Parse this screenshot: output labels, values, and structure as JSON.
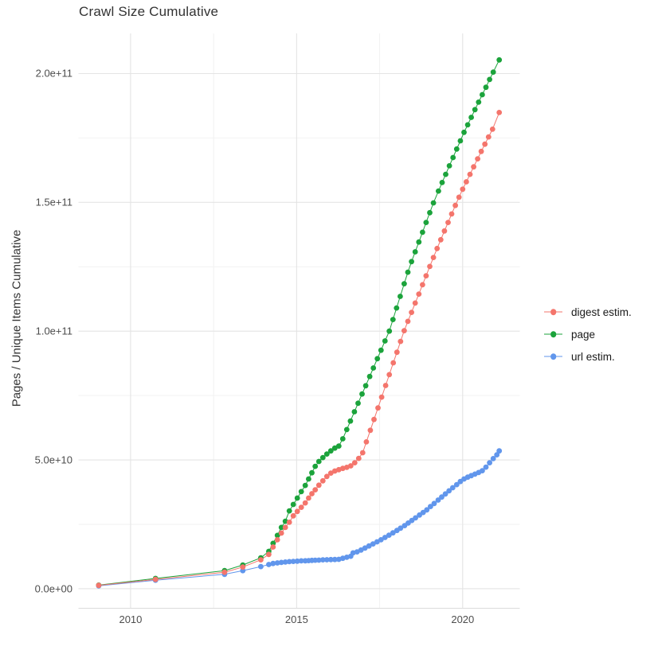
{
  "title": "Crawl Size Cumulative",
  "y_axis": {
    "label": "Pages / Unique Items Cumulative",
    "ticks": [
      {
        "v": 0,
        "label": "0.0e+00"
      },
      {
        "v": 50000000000.0,
        "label": "5.0e+10"
      },
      {
        "v": 100000000000.0,
        "label": "1.0e+11"
      },
      {
        "v": 150000000000.0,
        "label": "1.5e+11"
      },
      {
        "v": 200000000000.0,
        "label": "2.0e+11"
      }
    ]
  },
  "x_axis": {
    "ticks": [
      {
        "v": 2010,
        "label": "2010"
      },
      {
        "v": 2015,
        "label": "2015"
      },
      {
        "v": 2020,
        "label": "2020"
      }
    ]
  },
  "legend": {
    "position": "right",
    "items": [
      {
        "label": "digest estim.",
        "color": "#f4756c"
      },
      {
        "label": "page",
        "color": "#1ba33b"
      },
      {
        "label": "url estim.",
        "color": "#6196ec"
      }
    ]
  },
  "colors": {
    "background": "#ffffff",
    "grid_major": "#e4e4e4",
    "grid_minor": "#f2f2f2",
    "axis_line": "#dcdcdc",
    "title_text": "#333333",
    "tick_text": "#4d4d4d",
    "legend_text": "#1a1a1a"
  },
  "chart_data": {
    "type": "line",
    "title": "Crawl Size Cumulative",
    "xlabel": "",
    "ylabel": "Pages / Unique Items Cumulative",
    "xlim": [
      2008.43,
      2021.72
    ],
    "ylim": [
      -7600000000.0,
      215600000000.0
    ],
    "x_major_breaks": [
      2010,
      2015,
      2020
    ],
    "x_minor_breaks": [
      2012.5,
      2017.5
    ],
    "y_major_breaks": [
      0,
      50000000000.0,
      100000000000.0,
      150000000000.0,
      200000000000.0
    ],
    "y_minor_breaks": [
      25000000000.0,
      75000000000.0,
      125000000000.0,
      175000000000.0
    ],
    "grid": true,
    "legend_position": "right",
    "marker_radius_px": 3.4,
    "series": [
      {
        "name": "url estim.",
        "color": "#6196ec",
        "points": [
          [
            2009.04,
            1100000000.0
          ],
          [
            2010.75,
            3300000000.0
          ],
          [
            2012.83,
            5600000000.0
          ],
          [
            2013.38,
            7000000000.0
          ],
          [
            2013.92,
            8600000000.0
          ],
          [
            2014.16,
            9400000000.0
          ],
          [
            2014.29,
            9800000000.0
          ],
          [
            2014.42,
            10000000000.0
          ],
          [
            2014.54,
            10200000000.0
          ],
          [
            2014.66,
            10350000000.0
          ],
          [
            2014.78,
            10500000000.0
          ],
          [
            2014.9,
            10600000000.0
          ],
          [
            2015.02,
            10700000000.0
          ],
          [
            2015.14,
            10800000000.0
          ],
          [
            2015.26,
            10850000000.0
          ],
          [
            2015.36,
            10900000000.0
          ],
          [
            2015.46,
            11000000000.0
          ],
          [
            2015.56,
            11050000000.0
          ],
          [
            2015.67,
            11100000000.0
          ],
          [
            2015.79,
            11200000000.0
          ],
          [
            2015.91,
            11250000000.0
          ],
          [
            2016.03,
            11300000000.0
          ],
          [
            2016.15,
            11350000000.0
          ],
          [
            2016.27,
            11400000000.0
          ],
          [
            2016.39,
            11800000000.0
          ],
          [
            2016.51,
            12200000000.0
          ],
          [
            2016.63,
            12600000000.0
          ],
          [
            2016.7,
            13900000000.0
          ],
          [
            2016.82,
            14300000000.0
          ],
          [
            2016.94,
            15000000000.0
          ],
          [
            2017.06,
            15800000000.0
          ],
          [
            2017.18,
            16600000000.0
          ],
          [
            2017.3,
            17400000000.0
          ],
          [
            2017.42,
            18200000000.0
          ],
          [
            2017.54,
            19000000000.0
          ],
          [
            2017.66,
            19900000000.0
          ],
          [
            2017.78,
            20800000000.0
          ],
          [
            2017.9,
            21700000000.0
          ],
          [
            2018.02,
            22600000000.0
          ],
          [
            2018.13,
            23500000000.0
          ],
          [
            2018.25,
            24500000000.0
          ],
          [
            2018.36,
            25500000000.0
          ],
          [
            2018.47,
            26500000000.0
          ],
          [
            2018.58,
            27500000000.0
          ],
          [
            2018.7,
            28600000000.0
          ],
          [
            2018.81,
            29600000000.0
          ],
          [
            2018.92,
            30600000000.0
          ],
          [
            2019.03,
            31900000000.0
          ],
          [
            2019.14,
            33100000000.0
          ],
          [
            2019.26,
            34400000000.0
          ],
          [
            2019.37,
            35600000000.0
          ],
          [
            2019.48,
            36800000000.0
          ],
          [
            2019.59,
            38000000000.0
          ],
          [
            2019.7,
            39200000000.0
          ],
          [
            2019.82,
            40400000000.0
          ],
          [
            2019.93,
            41600000000.0
          ],
          [
            2020.04,
            42600000000.0
          ],
          [
            2020.15,
            43300000000.0
          ],
          [
            2020.26,
            43900000000.0
          ],
          [
            2020.37,
            44500000000.0
          ],
          [
            2020.48,
            45100000000.0
          ],
          [
            2020.59,
            45800000000.0
          ],
          [
            2020.7,
            47200000000.0
          ],
          [
            2020.81,
            48900000000.0
          ],
          [
            2020.92,
            50500000000.0
          ],
          [
            2021.03,
            52000000000.0
          ],
          [
            2021.1,
            53500000000.0
          ]
        ]
      },
      {
        "name": "page",
        "color": "#1ba33b",
        "points": [
          [
            2009.04,
            1400000000.0
          ],
          [
            2010.75,
            4000000000.0
          ],
          [
            2012.83,
            7000000000.0
          ],
          [
            2013.38,
            9200000000.0
          ],
          [
            2013.92,
            12000000000.0
          ],
          [
            2014.16,
            14500000000.0
          ],
          [
            2014.29,
            17600000000.0
          ],
          [
            2014.42,
            20700000000.0
          ],
          [
            2014.54,
            23800000000.0
          ],
          [
            2014.66,
            26200000000.0
          ],
          [
            2014.78,
            30200000000.0
          ],
          [
            2014.9,
            32700000000.0
          ],
          [
            2015.02,
            35200000000.0
          ],
          [
            2015.14,
            37700000000.0
          ],
          [
            2015.26,
            40100000000.0
          ],
          [
            2015.36,
            42600000000.0
          ],
          [
            2015.46,
            45000000000.0
          ],
          [
            2015.56,
            47500000000.0
          ],
          [
            2015.67,
            49400000000.0
          ],
          [
            2015.79,
            50900000000.0
          ],
          [
            2015.91,
            52300000000.0
          ],
          [
            2016.03,
            53500000000.0
          ],
          [
            2016.15,
            54600000000.0
          ],
          [
            2016.27,
            55400000000.0
          ],
          [
            2016.39,
            58200000000.0
          ],
          [
            2016.51,
            61800000000.0
          ],
          [
            2016.62,
            65100000000.0
          ],
          [
            2016.74,
            68700000000.0
          ],
          [
            2016.85,
            72000000000.0
          ],
          [
            2016.97,
            75600000000.0
          ],
          [
            2017.08,
            78800000000.0
          ],
          [
            2017.2,
            82400000000.0
          ],
          [
            2017.31,
            85700000000.0
          ],
          [
            2017.43,
            89300000000.0
          ],
          [
            2017.54,
            92600000000.0
          ],
          [
            2017.66,
            96200000000.0
          ],
          [
            2017.79,
            100000000000.0
          ],
          [
            2017.9,
            104500000000.0
          ],
          [
            2018.01,
            109000000000.0
          ],
          [
            2018.12,
            113500000000.0
          ],
          [
            2018.24,
            118400000000.0
          ],
          [
            2018.35,
            122900000000.0
          ],
          [
            2018.46,
            127000000000.0
          ],
          [
            2018.57,
            130800000000.0
          ],
          [
            2018.68,
            134600000000.0
          ],
          [
            2018.79,
            138400000000.0
          ],
          [
            2018.9,
            142200000000.0
          ],
          [
            2019.01,
            146000000000.0
          ],
          [
            2019.12,
            149800000000.0
          ],
          [
            2019.27,
            154400000000.0
          ],
          [
            2019.38,
            157700000000.0
          ],
          [
            2019.49,
            160900000000.0
          ],
          [
            2019.6,
            164200000000.0
          ],
          [
            2019.71,
            167400000000.0
          ],
          [
            2019.82,
            170700000000.0
          ],
          [
            2019.93,
            173900000000.0
          ],
          [
            2020.04,
            177200000000.0
          ],
          [
            2020.15,
            180100000000.0
          ],
          [
            2020.26,
            183000000000.0
          ],
          [
            2020.37,
            186000000000.0
          ],
          [
            2020.48,
            188900000000.0
          ],
          [
            2020.59,
            191800000000.0
          ],
          [
            2020.7,
            194700000000.0
          ],
          [
            2020.81,
            197700000000.0
          ],
          [
            2020.92,
            200600000000.0
          ],
          [
            2021.1,
            205300000000.0
          ]
        ]
      },
      {
        "name": "digest estim.",
        "color": "#f4756c",
        "points": [
          [
            2009.04,
            1300000000.0
          ],
          [
            2010.75,
            3600000000.0
          ],
          [
            2012.83,
            6400000000.0
          ],
          [
            2013.38,
            8400000000.0
          ],
          [
            2013.92,
            11200000000.0
          ],
          [
            2014.16,
            13300000000.0
          ],
          [
            2014.29,
            16200000000.0
          ],
          [
            2014.42,
            19000000000.0
          ],
          [
            2014.54,
            21600000000.0
          ],
          [
            2014.66,
            23800000000.0
          ],
          [
            2014.78,
            25800000000.0
          ],
          [
            2014.9,
            28300000000.0
          ],
          [
            2015.02,
            30000000000.0
          ],
          [
            2015.14,
            31600000000.0
          ],
          [
            2015.26,
            33300000000.0
          ],
          [
            2015.36,
            35200000000.0
          ],
          [
            2015.46,
            36900000000.0
          ],
          [
            2015.56,
            38400000000.0
          ],
          [
            2015.67,
            40200000000.0
          ],
          [
            2015.79,
            41900000000.0
          ],
          [
            2015.91,
            43600000000.0
          ],
          [
            2016.03,
            44900000000.0
          ],
          [
            2016.15,
            45700000000.0
          ],
          [
            2016.27,
            46200000000.0
          ],
          [
            2016.39,
            46700000000.0
          ],
          [
            2016.51,
            47100000000.0
          ],
          [
            2016.63,
            47700000000.0
          ],
          [
            2016.75,
            48900000000.0
          ],
          [
            2016.87,
            50600000000.0
          ],
          [
            2016.99,
            52800000000.0
          ],
          [
            2017.1,
            57000000000.0
          ],
          [
            2017.22,
            61500000000.0
          ],
          [
            2017.33,
            65700000000.0
          ],
          [
            2017.45,
            70200000000.0
          ],
          [
            2017.56,
            74400000000.0
          ],
          [
            2017.68,
            78900000000.0
          ],
          [
            2017.79,
            83100000000.0
          ],
          [
            2017.91,
            87700000000.0
          ],
          [
            2018.02,
            91800000000.0
          ],
          [
            2018.13,
            96000000000.0
          ],
          [
            2018.24,
            100200000000.0
          ],
          [
            2018.35,
            103800000000.0
          ],
          [
            2018.46,
            107300000000.0
          ],
          [
            2018.57,
            110900000000.0
          ],
          [
            2018.68,
            114400000000.0
          ],
          [
            2018.79,
            118000000000.0
          ],
          [
            2018.9,
            121500000000.0
          ],
          [
            2019.01,
            125100000000.0
          ],
          [
            2019.12,
            128600000000.0
          ],
          [
            2019.23,
            132100000000.0
          ],
          [
            2019.34,
            135500000000.0
          ],
          [
            2019.45,
            138900000000.0
          ],
          [
            2019.56,
            142200000000.0
          ],
          [
            2019.67,
            145500000000.0
          ],
          [
            2019.78,
            148800000000.0
          ],
          [
            2019.89,
            152000000000.0
          ],
          [
            2020.0,
            155100000000.0
          ],
          [
            2020.11,
            158000000000.0
          ],
          [
            2020.22,
            160900000000.0
          ],
          [
            2020.33,
            163800000000.0
          ],
          [
            2020.45,
            166900000000.0
          ],
          [
            2020.56,
            169800000000.0
          ],
          [
            2020.67,
            172600000000.0
          ],
          [
            2020.78,
            175400000000.0
          ],
          [
            2020.9,
            178400000000.0
          ],
          [
            2021.1,
            184900000000.0
          ]
        ]
      }
    ]
  }
}
